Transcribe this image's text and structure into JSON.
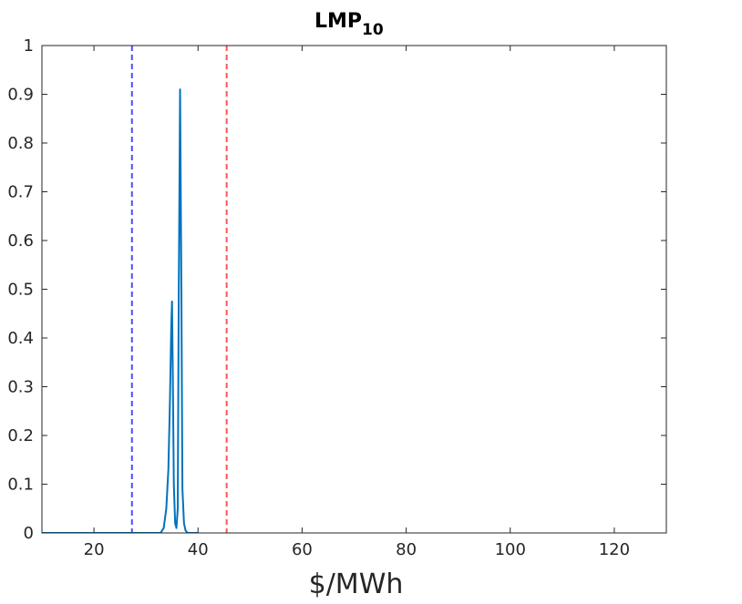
{
  "chart_data": {
    "type": "line",
    "title": "LMP",
    "title_subscript": "10",
    "xlabel": "$/MWh",
    "ylabel": "",
    "xlim": [
      10,
      130
    ],
    "ylim": [
      0,
      1
    ],
    "x_ticks": [
      20,
      40,
      60,
      80,
      100,
      120
    ],
    "y_ticks": [
      0,
      0.1,
      0.2,
      0.3,
      0.4,
      0.5,
      0.6,
      0.7,
      0.8,
      0.9,
      1
    ],
    "grid": false,
    "series": [
      {
        "color": "#0072bd",
        "x": [
          10,
          20,
          30,
          32.8,
          33.4,
          33.9,
          34.3,
          34.6,
          34.85,
          35.0,
          35.15,
          35.35,
          35.6,
          35.85,
          36.1,
          36.3,
          36.55,
          36.8,
          37.0,
          37.3,
          37.6,
          38,
          40
        ],
        "y": [
          0,
          0,
          0,
          0,
          0.01,
          0.05,
          0.13,
          0.27,
          0.42,
          0.475,
          0.33,
          0.1,
          0.02,
          0.01,
          0.05,
          0.5,
          0.91,
          0.5,
          0.09,
          0.02,
          0.005,
          0,
          0
        ]
      }
    ],
    "vlines": [
      {
        "x": 27.3,
        "color": "#4d4dff",
        "style": "dashed"
      },
      {
        "x": 45.5,
        "color": "#ff5555",
        "style": "dashed"
      }
    ],
    "legend": "none"
  }
}
